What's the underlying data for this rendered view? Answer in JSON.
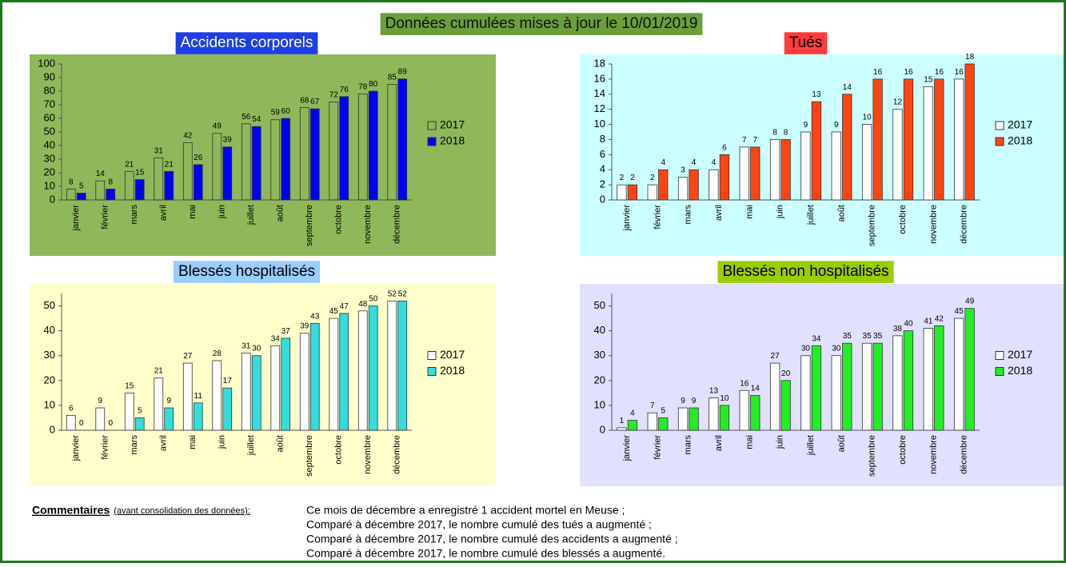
{
  "header": {
    "title": "Données cumulées mises à jour le 10/01/2019",
    "background": "#6a9f3c"
  },
  "chart_data": [
    {
      "type": "bar",
      "title": "Accidents corporels",
      "background": "#8fb85a",
      "title_background": "#1f3fe6",
      "title_color": "#ffffff",
      "categories": [
        "janvier",
        "février",
        "mars",
        "avril",
        "mai",
        "juin",
        "juillet",
        "août",
        "septembre",
        "octobre",
        "novembre",
        "décembre"
      ],
      "series": [
        {
          "name": "2017",
          "color": "none",
          "values": [
            8,
            14,
            21,
            31,
            42,
            49,
            56,
            59,
            68,
            72,
            78,
            85
          ]
        },
        {
          "name": "2018",
          "color": "#0000ff",
          "values": [
            5,
            8,
            15,
            21,
            26,
            39,
            54,
            60,
            67,
            76,
            80,
            89
          ]
        }
      ],
      "ylim": [
        0,
        100
      ],
      "yticks": [
        0,
        10,
        20,
        30,
        40,
        50,
        60,
        70,
        80,
        90,
        100
      ]
    },
    {
      "type": "bar",
      "title": "Tués",
      "background": "#ccffff",
      "title_background": "#ff3b3b",
      "title_color": "#000000",
      "categories": [
        "janvier",
        "février",
        "mars",
        "avril",
        "mai",
        "juin",
        "juillet",
        "août",
        "septembre",
        "octobre",
        "novembre",
        "décembre"
      ],
      "series": [
        {
          "name": "2017",
          "color": "#ffffff",
          "values": [
            2,
            2,
            3,
            4,
            7,
            8,
            9,
            9,
            10,
            12,
            15,
            16
          ]
        },
        {
          "name": "2018",
          "color": "#ff4411",
          "values": [
            2,
            4,
            4,
            6,
            7,
            8,
            13,
            14,
            16,
            16,
            16,
            18
          ]
        }
      ],
      "ylim": [
        0,
        18
      ],
      "yticks": [
        0,
        2,
        4,
        6,
        8,
        10,
        12,
        14,
        16,
        18
      ]
    },
    {
      "type": "bar",
      "title": "Blessés hospitalisés",
      "background": "#ffffcc",
      "title_background": "#99ccff",
      "title_color": "#000000",
      "categories": [
        "janvier",
        "février",
        "mars",
        "avril",
        "mai",
        "juin",
        "juillet",
        "août",
        "septembre",
        "octobre",
        "novembre",
        "décembre"
      ],
      "series": [
        {
          "name": "2017",
          "color": "#ffffff",
          "values": [
            6,
            9,
            15,
            21,
            27,
            28,
            31,
            34,
            39,
            45,
            48,
            52
          ]
        },
        {
          "name": "2018",
          "color": "#33dddd",
          "values": [
            0,
            0,
            5,
            9,
            11,
            17,
            30,
            37,
            43,
            47,
            50,
            52
          ]
        }
      ],
      "ylim": [
        0,
        55
      ],
      "yticks": [
        0,
        10,
        20,
        30,
        40,
        50
      ]
    },
    {
      "type": "bar",
      "title": "Blessés non hospitalisés",
      "background": "#e0e0ff",
      "title_background": "#99cc00",
      "title_color": "#000000",
      "categories": [
        "janvier",
        "février",
        "mars",
        "avril",
        "mai",
        "juin",
        "juillet",
        "août",
        "septembre",
        "octobre",
        "novembre",
        "décembre"
      ],
      "series": [
        {
          "name": "2017",
          "color": "#ffffff",
          "values": [
            1,
            7,
            9,
            13,
            16,
            27,
            30,
            30,
            35,
            38,
            41,
            45
          ]
        },
        {
          "name": "2018",
          "color": "#22ee22",
          "values": [
            4,
            5,
            9,
            10,
            14,
            20,
            34,
            35,
            35,
            40,
            42,
            49
          ]
        }
      ],
      "ylim": [
        0,
        55
      ],
      "yticks": [
        0,
        10,
        20,
        30,
        40,
        50
      ]
    }
  ],
  "comments": {
    "label": "Commentaires",
    "note": "(avant consolidation des données):",
    "lines": [
      "Ce mois de décembre a enregistré 1 accident mortel en Meuse ;",
      "Comparé à décembre 2017, le nombre cumulé des tués a augmenté ;",
      "Comparé à décembre 2017, le nombre cumulé des accidents a augmenté ;",
      "Comparé à décembre 2017, le nombre cumulé des blessés a augmenté."
    ]
  }
}
